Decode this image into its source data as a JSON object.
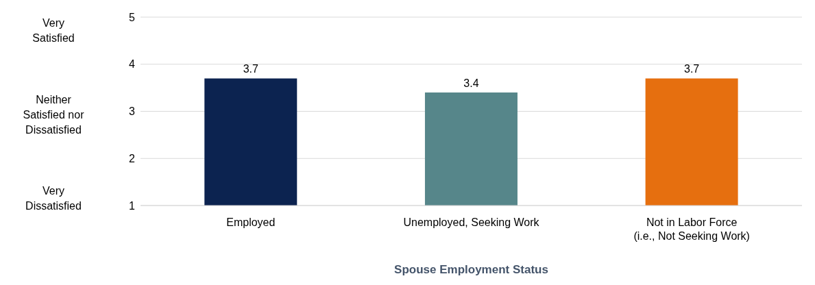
{
  "chart_data": {
    "type": "bar",
    "xlabel": "Spouse Employment Status",
    "categories": [
      "Employed",
      "Unemployed, Seeking Work",
      "Not in Labor Force\n(i.e., Not Seeking Work)"
    ],
    "values": [
      3.7,
      3.4,
      3.7
    ],
    "colors": [
      "#0c2350",
      "#56868a",
      "#e66f0f"
    ],
    "ylim": [
      1,
      5
    ],
    "yticks": [
      1,
      2,
      3,
      4,
      5
    ],
    "grid": "y",
    "data_labels": true,
    "annotations": [
      "Very\nSatisfied",
      "Neither\nSatisfied nor\nDissatisfied",
      "Very\nDissatisfied"
    ]
  }
}
